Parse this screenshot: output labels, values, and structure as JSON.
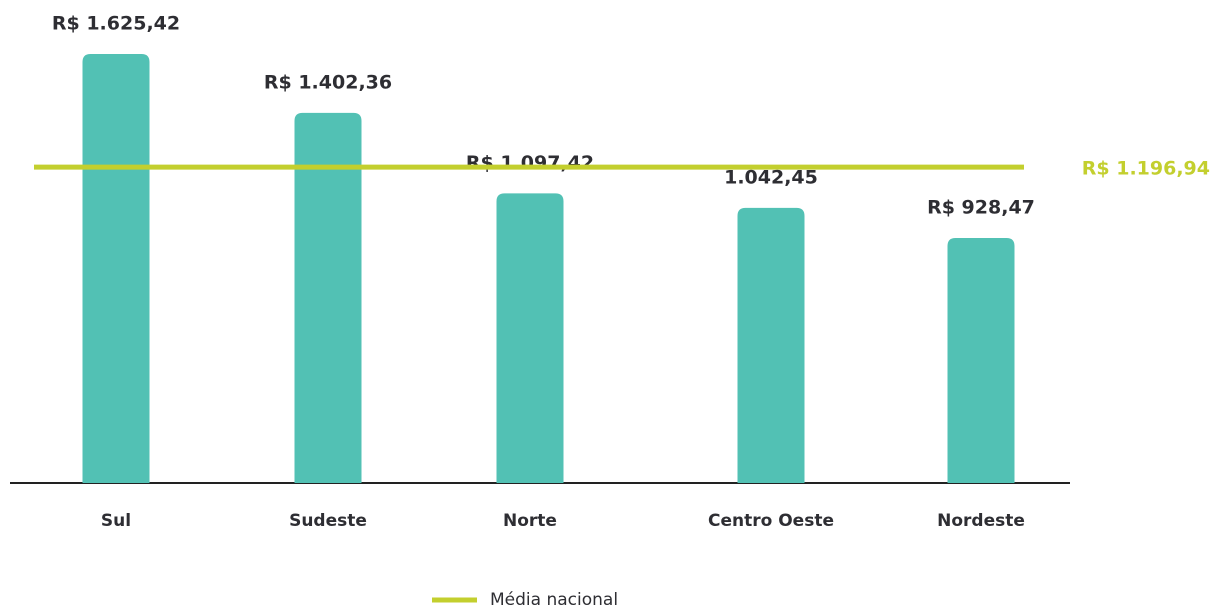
{
  "chart_data": {
    "type": "bar",
    "categories": [
      "Sul",
      "Sudeste",
      "Norte",
      "Centro Oeste",
      "Nordeste"
    ],
    "values": [
      1625.42,
      1402.36,
      1097.42,
      1042.45,
      928.47
    ],
    "value_labels": [
      "R$ 1.625,42",
      "R$ 1.402,36",
      "R$ 1.097,42",
      "1.042,45",
      "R$ 928,47"
    ],
    "color": "#52c1b4",
    "reference_line": {
      "name": "Média nacional",
      "value": 1196.94,
      "label": "R$ 1.196,94",
      "color": "#c3cf2e"
    }
  }
}
